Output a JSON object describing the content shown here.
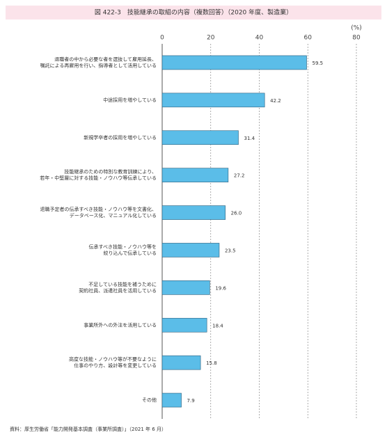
{
  "chart_data": {
    "type": "bar",
    "orientation": "horizontal",
    "title": "図 422-3　技能継承の取組の内容（複数回答）（2020 年度、製造業）",
    "unit": "(%)",
    "source": "資料：厚生労働省「能力開発基本調査（事業所調査）」（2021 年 6 月）",
    "categories": [
      "退職者の中から必要な者を選抜して雇用延長、\n嘱託による再雇用を行い、指導者として活用している",
      "中途採用を増やしている",
      "新規学卒者の採用を増やしている",
      "技能継承のための特別な教育訓練により、\n若年・中堅層に対する技能・ノウハウ等伝承している",
      "退職予定者の伝承すべき技能・ノウハウ等を文書化、\nデータベース化、マニュアル化している",
      "伝承すべき技能・ノウハウ等を\n絞り込んで伝承している",
      "不足している技能を補うために\n契約社員、派遣社員を活用している",
      "事業所外への外注を活用している",
      "高度な技能・ノウハウ等が不要なように\n仕事のやり方、設計等を変更している",
      "その他"
    ],
    "values": [
      59.5,
      42.2,
      31.4,
      27.2,
      26.0,
      23.5,
      19.6,
      18.4,
      15.8,
      7.9
    ],
    "value_labels": [
      "59.5",
      "42.2",
      "31.4",
      "27.2",
      "26.0",
      "23.5",
      "19.6",
      "18.4",
      "15.8",
      "7.9"
    ],
    "color": "#5bbde8",
    "xlim": [
      0,
      80
    ],
    "xticks": [
      0,
      20,
      40,
      60,
      80
    ],
    "grid": true
  }
}
